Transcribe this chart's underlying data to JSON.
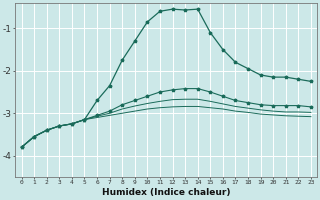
{
  "xlabel": "Humidex (Indice chaleur)",
  "bg_color": "#cce8e8",
  "line_color": "#1a6b5a",
  "grid_color": "#ffffff",
  "xlim": [
    -0.5,
    23.5
  ],
  "ylim": [
    -4.5,
    -0.4
  ],
  "yticks": [
    -4,
    -3,
    -2,
    -1
  ],
  "xticks": [
    0,
    1,
    2,
    3,
    4,
    5,
    6,
    7,
    8,
    9,
    10,
    11,
    12,
    13,
    14,
    15,
    16,
    17,
    18,
    19,
    20,
    21,
    22,
    23
  ],
  "series1_x": [
    0,
    1,
    2,
    3,
    4,
    5,
    6,
    7,
    8,
    9,
    10,
    11,
    12,
    13,
    14,
    15,
    16,
    17,
    18,
    19,
    20,
    21,
    22,
    23
  ],
  "series1_y": [
    -3.8,
    -3.55,
    -3.4,
    -3.3,
    -3.25,
    -3.15,
    -2.7,
    -2.35,
    -1.75,
    -1.3,
    -0.85,
    -0.6,
    -0.55,
    -0.57,
    -0.55,
    -1.1,
    -1.5,
    -1.8,
    -1.95,
    -2.1,
    -2.15,
    -2.15,
    -2.2,
    -2.25
  ],
  "series2_x": [
    0,
    1,
    2,
    3,
    4,
    5,
    6,
    7,
    8,
    9,
    10,
    11,
    12,
    13,
    14,
    15,
    16,
    17,
    18,
    19,
    20,
    21,
    22,
    23
  ],
  "series2_y": [
    -3.8,
    -3.55,
    -3.4,
    -3.3,
    -3.25,
    -3.15,
    -3.05,
    -2.95,
    -2.8,
    -2.7,
    -2.6,
    -2.5,
    -2.45,
    -2.42,
    -2.42,
    -2.5,
    -2.6,
    -2.7,
    -2.75,
    -2.8,
    -2.82,
    -2.82,
    -2.82,
    -2.85
  ],
  "series3_x": [
    0,
    1,
    2,
    3,
    4,
    5,
    6,
    7,
    8,
    9,
    10,
    11,
    12,
    13,
    14,
    15,
    16,
    17,
    18,
    19,
    20,
    21,
    22,
    23
  ],
  "series3_y": [
    -3.8,
    -3.55,
    -3.4,
    -3.3,
    -3.25,
    -3.15,
    -3.07,
    -3.0,
    -2.9,
    -2.83,
    -2.77,
    -2.72,
    -2.68,
    -2.67,
    -2.67,
    -2.72,
    -2.78,
    -2.84,
    -2.88,
    -2.92,
    -2.95,
    -2.97,
    -2.97,
    -2.98
  ],
  "series4_x": [
    0,
    1,
    2,
    3,
    4,
    5,
    6,
    7,
    8,
    9,
    10,
    11,
    12,
    13,
    14,
    15,
    16,
    17,
    18,
    19,
    20,
    21,
    22,
    23
  ],
  "series4_y": [
    -3.8,
    -3.55,
    -3.4,
    -3.3,
    -3.25,
    -3.15,
    -3.1,
    -3.05,
    -3.0,
    -2.95,
    -2.9,
    -2.87,
    -2.85,
    -2.84,
    -2.84,
    -2.87,
    -2.9,
    -2.95,
    -2.98,
    -3.02,
    -3.04,
    -3.06,
    -3.07,
    -3.08
  ]
}
